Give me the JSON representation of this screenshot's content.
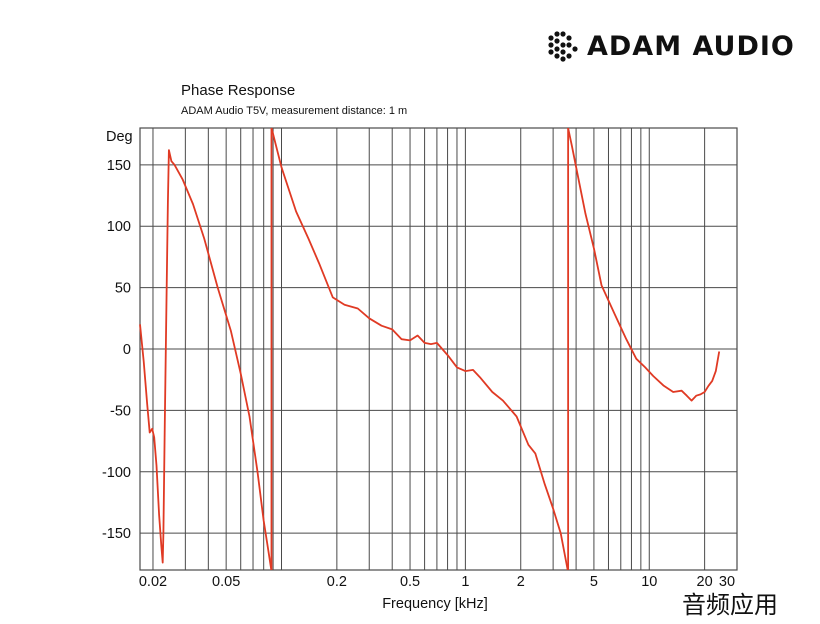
{
  "brand": {
    "name": "ADAM AUDIO"
  },
  "watermark": "音频应用",
  "chart_data": {
    "type": "line",
    "title": "Phase Response",
    "subtitle": "ADAM Audio T5V, measurement distance: 1 m",
    "xlabel": "Frequency [kHz]",
    "ylabel": "Deg",
    "x_scale": "log",
    "xlim": [
      0.017,
      30
    ],
    "ylim": [
      -180,
      180
    ],
    "grid": true,
    "x_tick_labels": [
      "0.02",
      "0.05",
      "0.2",
      "0.5",
      "1",
      "2",
      "5",
      "10",
      "20",
      "30"
    ],
    "y_tick_labels": [
      "150",
      "100",
      "50",
      "0",
      "-50",
      "-100",
      "-150"
    ],
    "colors": {
      "line": "#e03a24",
      "grid": "#4a4a4a"
    },
    "series": [
      {
        "values": [
          [
            0.017,
            20
          ],
          [
            0.0178,
            -10
          ],
          [
            0.0186,
            -45
          ],
          [
            0.0192,
            -68
          ],
          [
            0.0198,
            -65
          ],
          [
            0.0203,
            -72
          ],
          [
            0.0209,
            -95
          ],
          [
            0.0216,
            -135
          ],
          [
            0.0222,
            -160
          ],
          [
            0.0226,
            -174
          ],
          [
            0.0228,
            -150
          ],
          [
            0.0232,
            -60
          ],
          [
            0.0237,
            40
          ],
          [
            0.0241,
            120
          ],
          [
            0.0244,
            162
          ],
          [
            0.0252,
            153
          ],
          [
            0.0262,
            150
          ],
          [
            0.029,
            138
          ],
          [
            0.033,
            118
          ],
          [
            0.038,
            90
          ],
          [
            0.045,
            50
          ],
          [
            0.053,
            15
          ],
          [
            0.06,
            -20
          ],
          [
            0.067,
            -55
          ],
          [
            0.074,
            -100
          ],
          [
            0.08,
            -140
          ],
          [
            0.085,
            -165
          ],
          [
            0.088,
            -180
          ],
          [
            0.0882,
            180
          ],
          [
            0.09,
            175
          ],
          [
            0.1,
            148
          ],
          [
            0.12,
            112
          ],
          [
            0.14,
            90
          ],
          [
            0.16,
            70
          ],
          [
            0.19,
            42
          ],
          [
            0.22,
            36
          ],
          [
            0.26,
            33
          ],
          [
            0.3,
            25
          ],
          [
            0.35,
            19
          ],
          [
            0.4,
            16
          ],
          [
            0.45,
            8
          ],
          [
            0.5,
            7
          ],
          [
            0.55,
            11
          ],
          [
            0.6,
            5
          ],
          [
            0.65,
            4
          ],
          [
            0.7,
            5
          ],
          [
            0.8,
            -5
          ],
          [
            0.9,
            -15
          ],
          [
            1.0,
            -18
          ],
          [
            1.1,
            -17
          ],
          [
            1.2,
            -23
          ],
          [
            1.4,
            -35
          ],
          [
            1.6,
            -42
          ],
          [
            1.9,
            -55
          ],
          [
            2.2,
            -78
          ],
          [
            2.4,
            -85
          ],
          [
            2.7,
            -110
          ],
          [
            3.0,
            -130
          ],
          [
            3.3,
            -150
          ],
          [
            3.6,
            -180
          ],
          [
            3.62,
            180
          ],
          [
            3.8,
            165
          ],
          [
            4.1,
            140
          ],
          [
            4.5,
            110
          ],
          [
            5.0,
            82
          ],
          [
            5.5,
            52
          ],
          [
            6.5,
            28
          ],
          [
            7.5,
            8
          ],
          [
            8.5,
            -8
          ],
          [
            9.5,
            -15
          ],
          [
            10.5,
            -22
          ],
          [
            12,
            -30
          ],
          [
            13.5,
            -35
          ],
          [
            15,
            -34
          ],
          [
            16,
            -38
          ],
          [
            17,
            -42
          ],
          [
            18,
            -38
          ],
          [
            19,
            -37
          ],
          [
            20,
            -35
          ],
          [
            21,
            -30
          ],
          [
            22,
            -26
          ],
          [
            23,
            -18
          ],
          [
            24,
            -2
          ]
        ]
      }
    ]
  }
}
